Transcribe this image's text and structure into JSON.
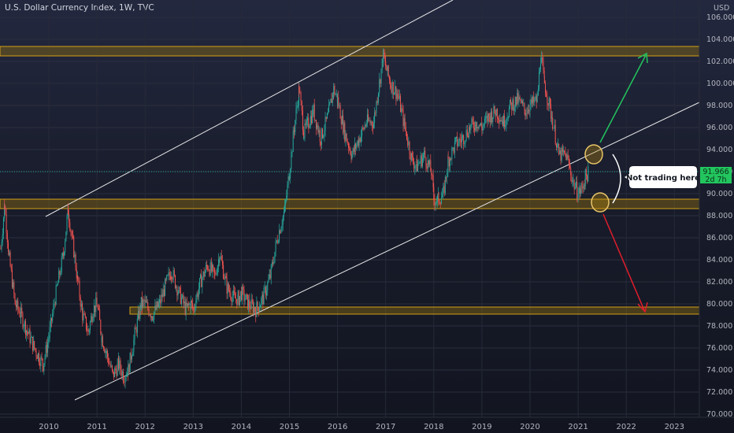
{
  "chart_data": {
    "type": "candlestick",
    "title": "U.S. Dollar Currency Index, 1W, TVC",
    "currency": "USD",
    "y_ticks": [
      "106.000",
      "104.000",
      "102.000",
      "100.000",
      "98.000",
      "96.000",
      "94.000",
      "92.000",
      "90.000",
      "88.000",
      "86.000",
      "84.000",
      "82.000",
      "80.000",
      "78.000",
      "76.000",
      "74.000",
      "72.000",
      "70.000"
    ],
    "x_ticks": [
      "2010",
      "2011",
      "2012",
      "2013",
      "2014",
      "2015",
      "2016",
      "2017",
      "2018",
      "2019",
      "2020",
      "2021",
      "2022",
      "2023"
    ],
    "ylim": [
      70,
      107
    ],
    "xlim": [
      2009.0,
      2023.6
    ],
    "last_price": "91.966",
    "countdown": "2d 7h",
    "series": [
      {
        "name": "price",
        "points": [
          [
            2009.0,
            85.0
          ],
          [
            2009.08,
            89.0
          ],
          [
            2009.18,
            84.0
          ],
          [
            2009.3,
            80.0
          ],
          [
            2009.42,
            79.0
          ],
          [
            2009.55,
            77.5
          ],
          [
            2009.7,
            76.0
          ],
          [
            2009.88,
            74.5
          ],
          [
            2010.0,
            77.0
          ],
          [
            2010.15,
            81.0
          ],
          [
            2010.3,
            84.5
          ],
          [
            2010.4,
            88.5
          ],
          [
            2010.5,
            85.5
          ],
          [
            2010.6,
            82.0
          ],
          [
            2010.7,
            79.0
          ],
          [
            2010.82,
            77.5
          ],
          [
            2010.92,
            79.5
          ],
          [
            2011.0,
            80.0
          ],
          [
            2011.1,
            77.0
          ],
          [
            2011.2,
            75.5
          ],
          [
            2011.33,
            73.5
          ],
          [
            2011.45,
            74.5
          ],
          [
            2011.55,
            73.5
          ],
          [
            2011.65,
            74.0
          ],
          [
            2011.8,
            77.5
          ],
          [
            2011.92,
            80.0
          ],
          [
            2012.0,
            80.0
          ],
          [
            2012.15,
            79.0
          ],
          [
            2012.3,
            80.0
          ],
          [
            2012.45,
            82.0
          ],
          [
            2012.55,
            83.0
          ],
          [
            2012.7,
            81.0
          ],
          [
            2012.85,
            79.5
          ],
          [
            2012.95,
            80.0
          ],
          [
            2013.0,
            79.5
          ],
          [
            2013.15,
            82.0
          ],
          [
            2013.3,
            83.5
          ],
          [
            2013.45,
            82.5
          ],
          [
            2013.55,
            84.5
          ],
          [
            2013.7,
            81.5
          ],
          [
            2013.85,
            80.5
          ],
          [
            2013.95,
            80.5
          ],
          [
            2014.0,
            81.0
          ],
          [
            2014.15,
            80.0
          ],
          [
            2014.3,
            79.5
          ],
          [
            2014.45,
            80.5
          ],
          [
            2014.6,
            82.5
          ],
          [
            2014.75,
            86.0
          ],
          [
            2014.9,
            88.5
          ],
          [
            2015.0,
            92.0
          ],
          [
            2015.1,
            96.0
          ],
          [
            2015.2,
            99.5
          ],
          [
            2015.3,
            95.5
          ],
          [
            2015.4,
            96.5
          ],
          [
            2015.5,
            97.5
          ],
          [
            2015.65,
            95.0
          ],
          [
            2015.8,
            97.0
          ],
          [
            2015.92,
            99.5
          ],
          [
            2016.0,
            98.5
          ],
          [
            2016.15,
            95.5
          ],
          [
            2016.3,
            93.5
          ],
          [
            2016.45,
            95.0
          ],
          [
            2016.6,
            96.5
          ],
          [
            2016.75,
            96.5
          ],
          [
            2016.85,
            99.5
          ],
          [
            2016.95,
            102.5
          ],
          [
            2017.0,
            101.5
          ],
          [
            2017.1,
            100.0
          ],
          [
            2017.25,
            99.0
          ],
          [
            2017.4,
            96.0
          ],
          [
            2017.55,
            93.0
          ],
          [
            2017.65,
            92.5
          ],
          [
            2017.8,
            93.5
          ],
          [
            2017.95,
            92.0
          ],
          [
            2018.0,
            89.5
          ],
          [
            2018.1,
            89.5
          ],
          [
            2018.2,
            90.0
          ],
          [
            2018.3,
            93.0
          ],
          [
            2018.45,
            94.5
          ],
          [
            2018.6,
            95.0
          ],
          [
            2018.75,
            96.0
          ],
          [
            2018.9,
            96.5
          ],
          [
            2019.0,
            96.0
          ],
          [
            2019.15,
            97.0
          ],
          [
            2019.3,
            97.5
          ],
          [
            2019.45,
            96.5
          ],
          [
            2019.6,
            98.0
          ],
          [
            2019.75,
            98.5
          ],
          [
            2019.9,
            97.5
          ],
          [
            2020.0,
            98.0
          ],
          [
            2020.15,
            98.5
          ],
          [
            2020.22,
            102.5
          ],
          [
            2020.3,
            100.0
          ],
          [
            2020.45,
            97.0
          ],
          [
            2020.6,
            93.5
          ],
          [
            2020.75,
            93.5
          ],
          [
            2020.9,
            91.0
          ],
          [
            2021.0,
            90.0
          ],
          [
            2021.08,
            90.5
          ],
          [
            2021.15,
            91.5
          ],
          [
            2021.22,
            91.966
          ]
        ]
      }
    ],
    "annotations": {
      "callout": "Not trading here"
    },
    "colors": {
      "up": "#26a69a",
      "down": "#ef5350",
      "zone": "#b8860b",
      "up_arrow": "#22c55e",
      "down_arrow": "#e11d2b",
      "price_tag": "#22c55e"
    }
  }
}
